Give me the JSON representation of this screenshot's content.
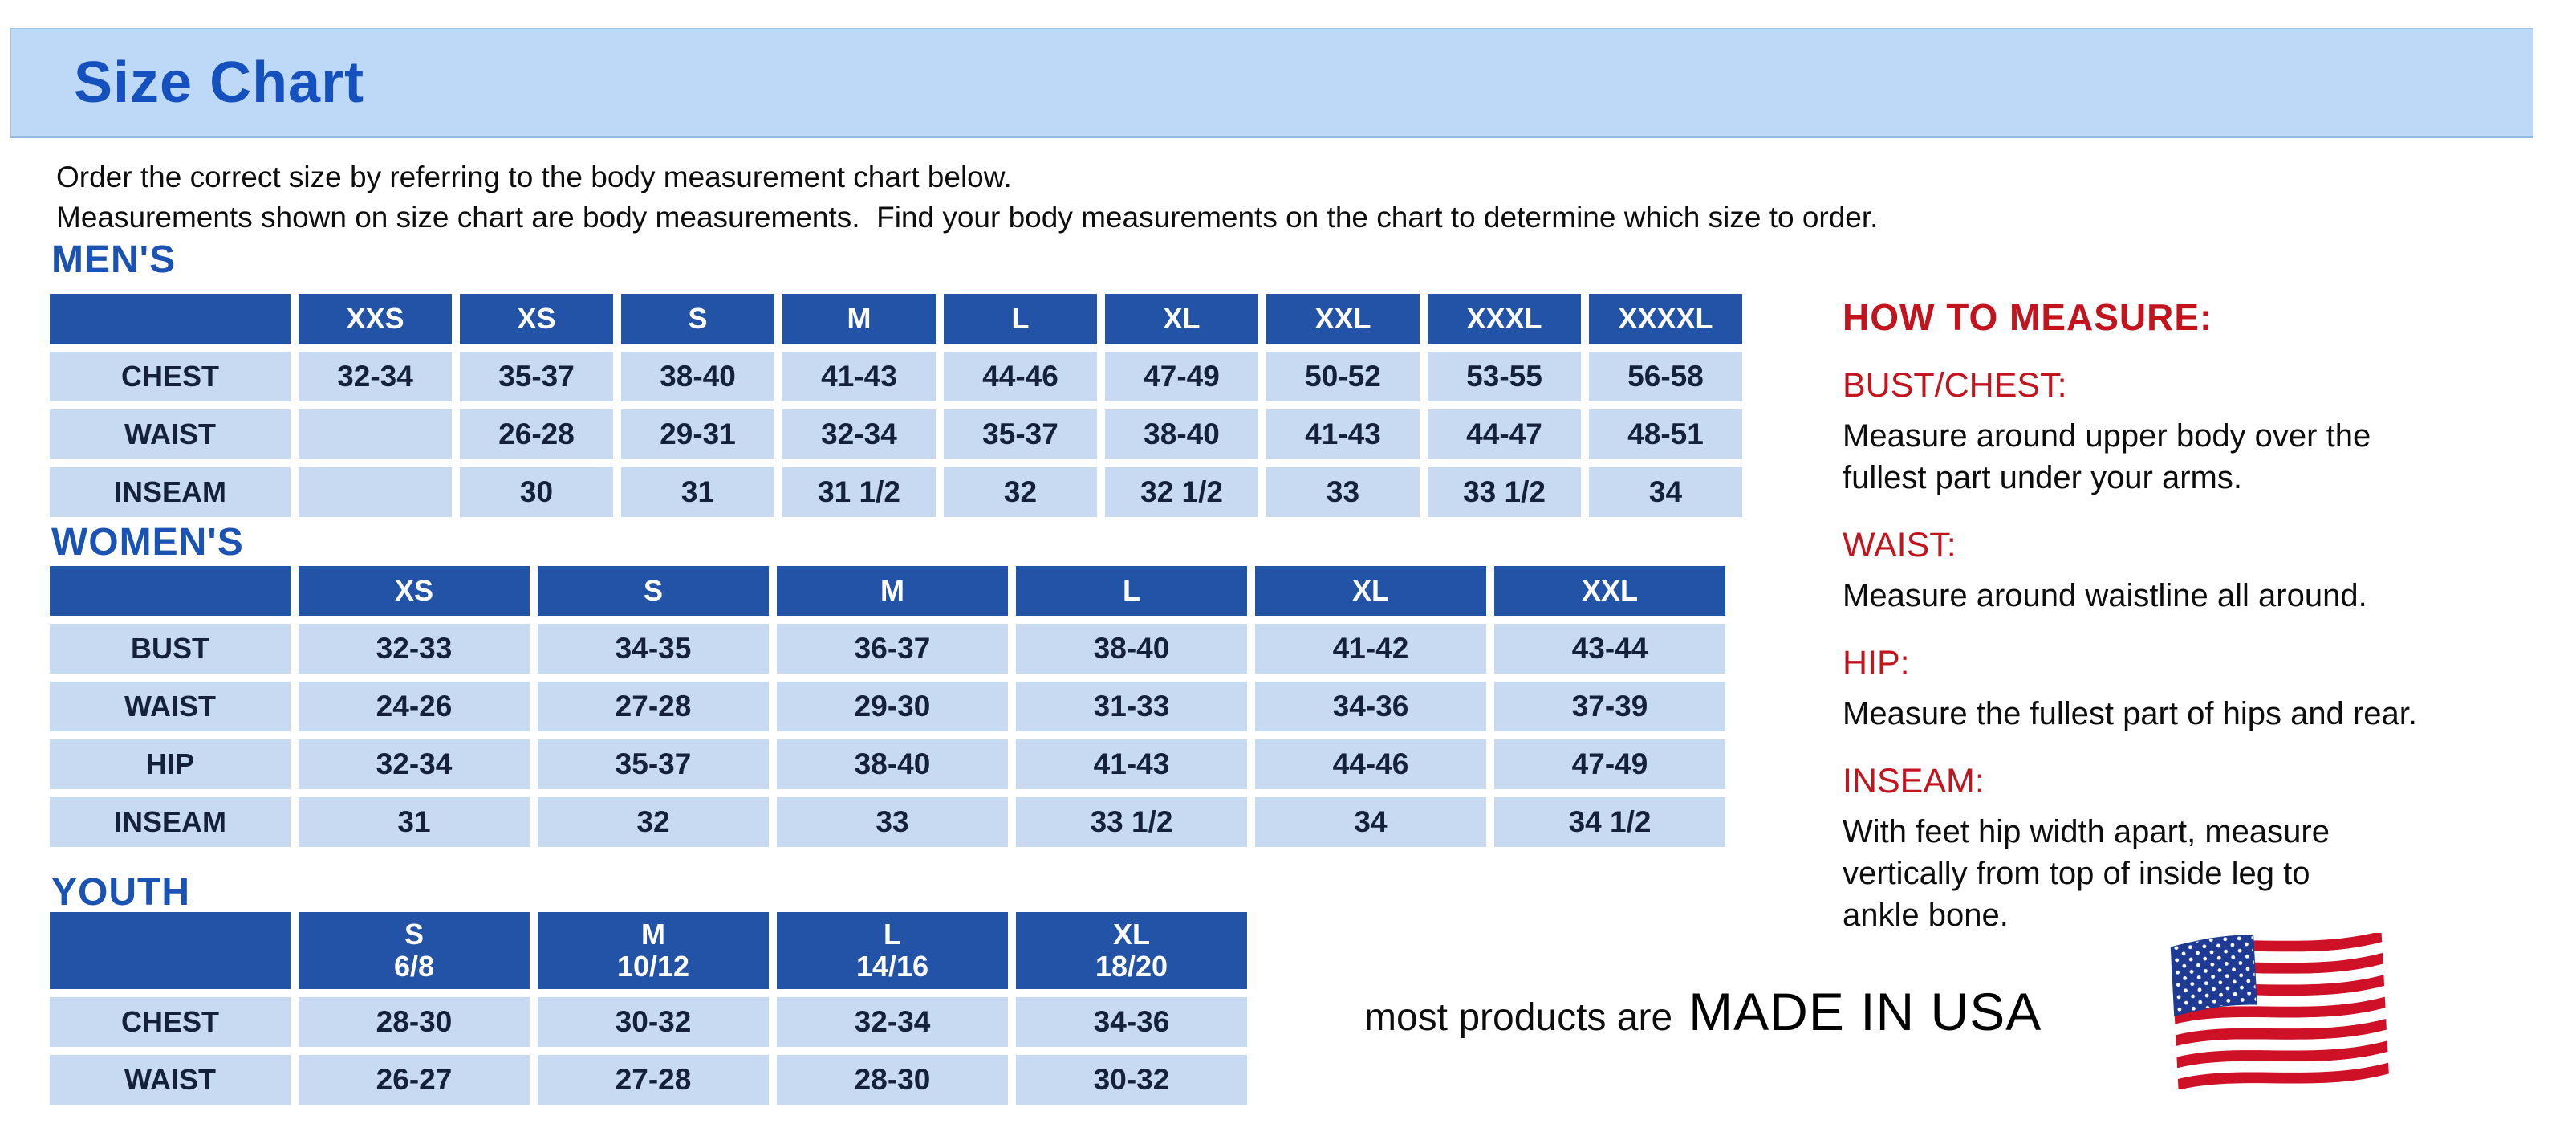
{
  "page": {
    "title": "Size Chart",
    "intro": "Order the correct size by referring to the body measurement chart below.\nMeasurements shown on size chart are body measurements.  Find your body measurements on the chart to determine which size to order."
  },
  "tables": {
    "mens": {
      "heading": "MEN'S",
      "columns": [
        "XXS",
        "XS",
        "S",
        "M",
        "L",
        "XL",
        "XXL",
        "XXXL",
        "XXXXL"
      ],
      "rows": [
        {
          "label": "CHEST",
          "values": [
            "32-34",
            "35-37",
            "38-40",
            "41-43",
            "44-46",
            "47-49",
            "50-52",
            "53-55",
            "56-58"
          ]
        },
        {
          "label": "WAIST",
          "values": [
            "",
            "26-28",
            "29-31",
            "32-34",
            "35-37",
            "38-40",
            "41-43",
            "44-47",
            "48-51"
          ]
        },
        {
          "label": "INSEAM",
          "values": [
            "",
            "30",
            "31",
            "31 1/2",
            "32",
            "32 1/2",
            "33",
            "33 1/2",
            "34"
          ]
        }
      ]
    },
    "womens": {
      "heading": "WOMEN'S",
      "columns": [
        "XS",
        "S",
        "M",
        "L",
        "XL",
        "XXL"
      ],
      "rows": [
        {
          "label": "BUST",
          "values": [
            "32-33",
            "34-35",
            "36-37",
            "38-40",
            "41-42",
            "43-44"
          ]
        },
        {
          "label": "WAIST",
          "values": [
            "24-26",
            "27-28",
            "29-30",
            "31-33",
            "34-36",
            "37-39"
          ]
        },
        {
          "label": "HIP",
          "values": [
            "32-34",
            "35-37",
            "38-40",
            "41-43",
            "44-46",
            "47-49"
          ]
        },
        {
          "label": "INSEAM",
          "values": [
            "31",
            "32",
            "33",
            "33 1/2",
            "34",
            "34 1/2"
          ]
        }
      ]
    },
    "youth": {
      "heading": "YOUTH",
      "columns": [
        "S\n6/8",
        "M\n10/12",
        "L\n14/16",
        "XL\n18/20"
      ],
      "rows": [
        {
          "label": "CHEST",
          "values": [
            "28-30",
            "30-32",
            "32-34",
            "34-36"
          ]
        },
        {
          "label": "WAIST",
          "values": [
            "26-27",
            "27-28",
            "28-30",
            "30-32"
          ]
        }
      ]
    }
  },
  "measure": {
    "heading": "HOW TO MEASURE:",
    "items": [
      {
        "term": "BUST/CHEST:",
        "desc": "Measure around upper body over the\nfullest part under your arms."
      },
      {
        "term": "WAIST:",
        "desc": "Measure around waistline all around."
      },
      {
        "term": "HIP:",
        "desc": "Measure the fullest part of hips and rear."
      },
      {
        "term": "INSEAM:",
        "desc": "With feet hip width apart, measure\nvertically from top of inside leg to\nankle bone."
      }
    ]
  },
  "footer": {
    "prefix": "most products are",
    "emphasis": "MADE IN USA",
    "flag_icon": "us-flag-icon"
  },
  "colors": {
    "banner_background": "#BED9F7",
    "title_blue": "#1551BE",
    "heading_blue": "#1B53B4",
    "table_header_blue": "#2253A7",
    "cell_blue": "#C7DAF1",
    "cell_text_navy": "#15213B",
    "measure_red": "#C3141E",
    "flag_red": "#CE1126",
    "flag_blue": "#1F3A93"
  }
}
